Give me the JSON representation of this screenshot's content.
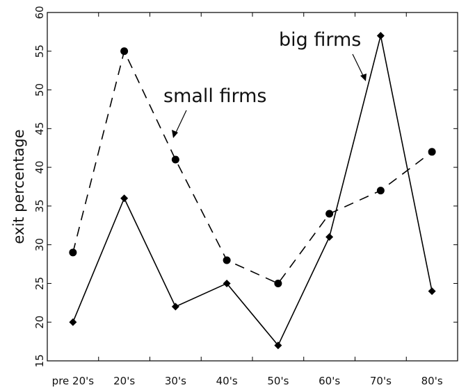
{
  "chart_data": {
    "type": "line",
    "categories": [
      "pre 20's",
      "20's",
      "30's",
      "40's",
      "50's",
      "60's",
      "70's",
      "80's"
    ],
    "ylabel": "exit percentage",
    "xlabel": "",
    "ylim": [
      15,
      60
    ],
    "yticks": [
      "15",
      "20",
      "25",
      "30",
      "35",
      "40",
      "45",
      "50",
      "55",
      "60"
    ],
    "grid": false,
    "series": [
      {
        "name": "small firms",
        "values": [
          29,
          55,
          41,
          28,
          25,
          34,
          37,
          42
        ],
        "line_style": "dashed",
        "marker": "circle",
        "color": "#000000"
      },
      {
        "name": "big firms",
        "values": [
          20,
          36,
          22,
          25,
          17,
          31,
          57,
          24
        ],
        "line_style": "solid",
        "marker": "diamond",
        "color": "#000000"
      }
    ],
    "annotations": [
      "small firms",
      "big firms"
    ]
  }
}
